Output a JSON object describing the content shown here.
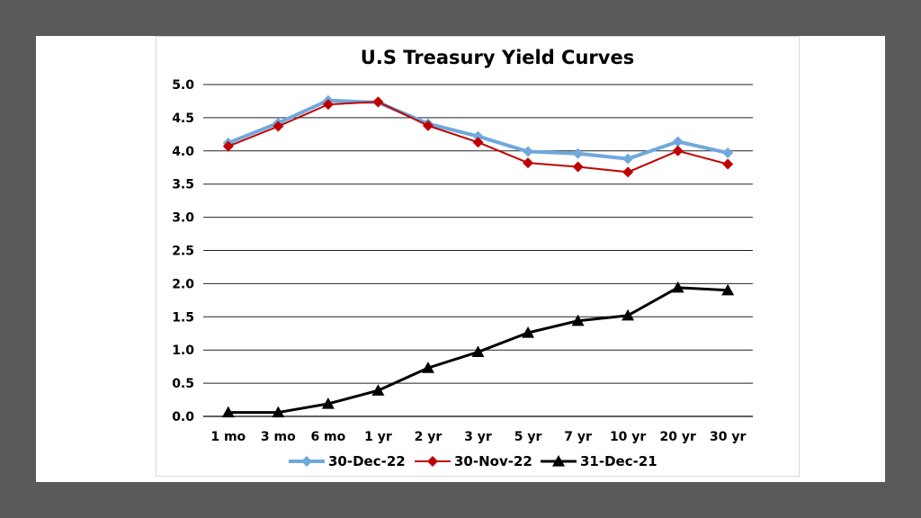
{
  "chart_data": {
    "type": "line",
    "title": "U.S Treasury Yield Curves",
    "xlabel": "",
    "ylabel": "",
    "categories": [
      "1 mo",
      "3 mo",
      "6 mo",
      "1 yr",
      "2 yr",
      "3 yr",
      "5 yr",
      "7 yr",
      "10 yr",
      "20 yr",
      "30 yr"
    ],
    "ylim": [
      0,
      5
    ],
    "yticks": [
      "0.0",
      "0.5",
      "1.0",
      "1.5",
      "2.0",
      "2.5",
      "3.0",
      "3.5",
      "4.0",
      "4.5",
      "5.0"
    ],
    "grid": true,
    "legend_position": "bottom",
    "series": [
      {
        "name": "30-Dec-22",
        "color": "#6fa8dc",
        "marker": "diamond",
        "values": [
          4.12,
          4.42,
          4.76,
          4.73,
          4.41,
          4.22,
          3.99,
          3.96,
          3.88,
          4.14,
          3.97
        ]
      },
      {
        "name": "30-Nov-22",
        "color": "#c00000",
        "marker": "diamond",
        "values": [
          4.07,
          4.37,
          4.7,
          4.74,
          4.38,
          4.13,
          3.82,
          3.76,
          3.68,
          4.0,
          3.8
        ]
      },
      {
        "name": "31-Dec-21",
        "color": "#000000",
        "marker": "triangle",
        "values": [
          0.06,
          0.06,
          0.19,
          0.39,
          0.73,
          0.97,
          1.26,
          1.44,
          1.52,
          1.94,
          1.9
        ]
      }
    ]
  }
}
